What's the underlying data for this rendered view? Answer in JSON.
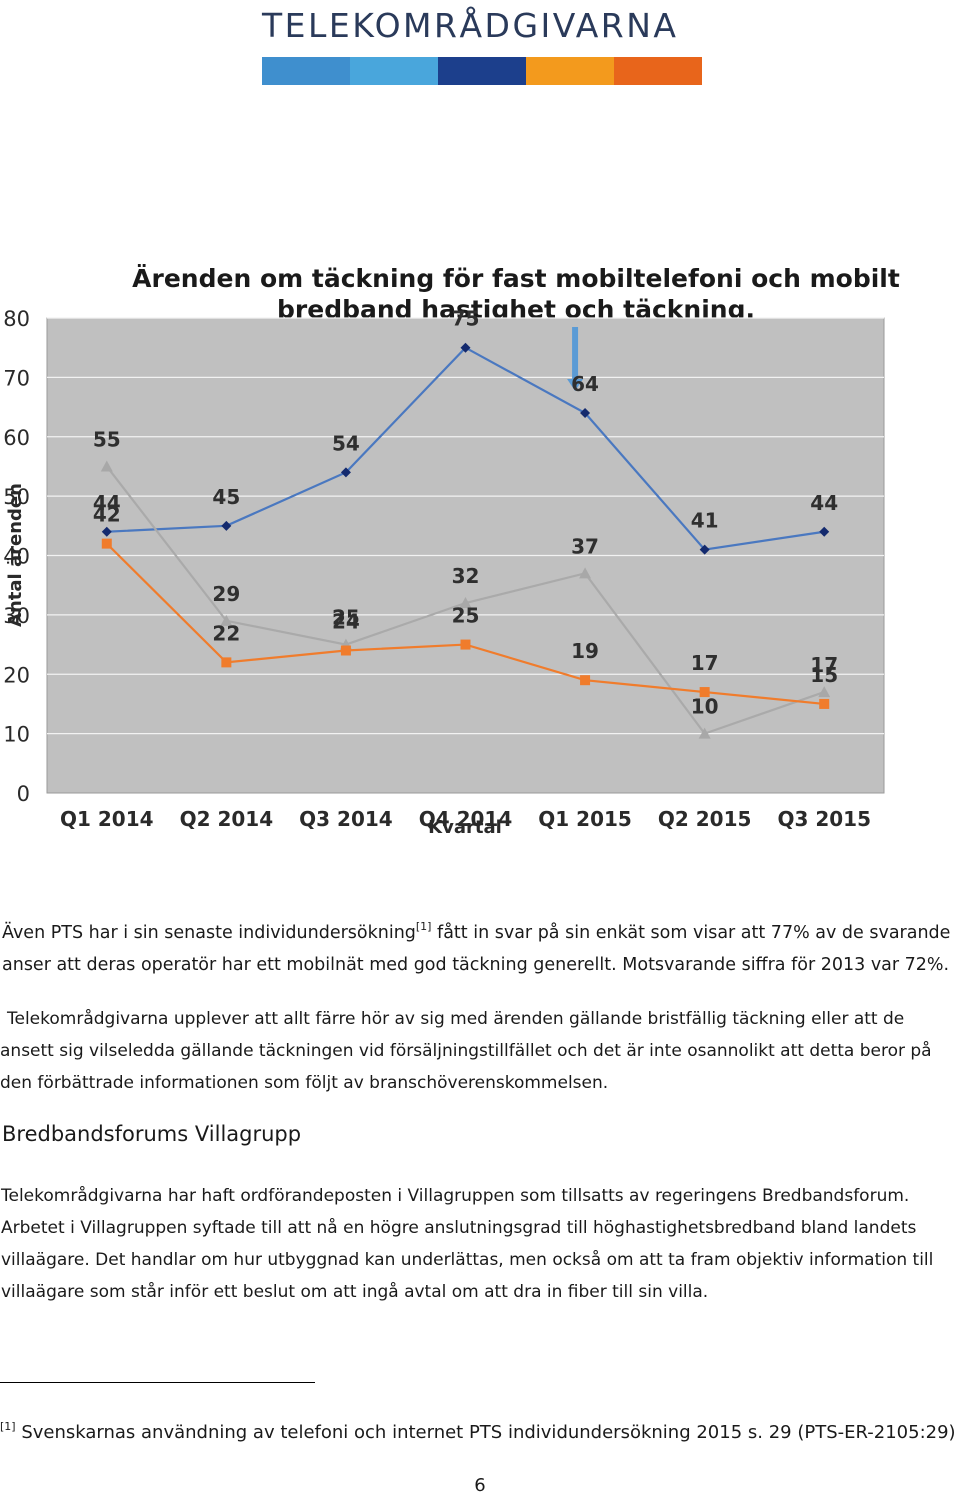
{
  "brand": {
    "name": "TELEKOMRÅDGIVARNA",
    "stripe_colors": [
      "#3f8fce",
      "#49a6dc",
      "#1c3f8c",
      "#f39a1d",
      "#e8651b"
    ]
  },
  "chart_data": {
    "type": "line",
    "title": "Ärenden om täckning för fast mobiltelefoni och mobilt bredband hastighet och täckning.",
    "xlabel": "Kvartal",
    "ylabel": "Antal ärenden",
    "categories": [
      "Q1 2014",
      "Q2 2014",
      "Q3 2014",
      "Q4 2014",
      "Q1 2015",
      "Q2 2015",
      "Q3 2015"
    ],
    "ylim": [
      0,
      80
    ],
    "yticks": [
      0,
      10,
      20,
      30,
      40,
      50,
      60,
      70,
      80
    ],
    "grid": true,
    "plot_background": "#c0c0c0",
    "series": [
      {
        "color": "#4a78c0",
        "marker": "diamond",
        "marker_color": "#142a6e",
        "values": [
          44,
          45,
          54,
          75,
          64,
          41,
          44
        ]
      },
      {
        "color": "#aaaaaa",
        "marker": "triangle",
        "marker_color": "#a8a8a8",
        "values": [
          55,
          29,
          25,
          32,
          37,
          10,
          17
        ]
      },
      {
        "color": "#f07c2c",
        "marker": "square",
        "marker_color": "#f07c2c",
        "values": [
          42,
          22,
          24,
          25,
          19,
          17,
          15
        ]
      }
    ],
    "annotation": "arrow-down"
  },
  "body": {
    "p1_before": "Även PTS har i sin senaste individundersökning",
    "p1_ref": "[1]",
    "p1_after": " fått in svar på sin enkät som visar att 77% av de svarande anser att deras operatör har ett mobilnät med god täckning generellt. Motsvarande siffra för 2013 var 72%.",
    "p2": "Telekområdgivarna upplever att allt färre hör av sig med ärenden gällande bristfällig täckning eller att de ansett sig vilseledda gällande täckningen vid försäljningstillfället och det är inte osannolikt att detta beror på den förbättrade informationen som följt av branschöverenskommelsen.",
    "heading": "Bredbandsforums Villagrupp",
    "p3": "Telekområdgivarna har haft ordförandeposten i Villagruppen som tillsatts av regeringens Bredbandsforum. Arbetet i Villagruppen syftade till att nå en högre anslutningsgrad till höghastighetsbredband bland landets villaägare. Det handlar om hur utbyggnad kan underlättas, men också om att ta fram objektiv information till villaägare som står inför ett beslut om att ingå avtal om att dra in fiber till sin villa."
  },
  "footnote": {
    "ref": "[1]",
    "text": " Svenskarnas användning av telefoni och internet PTS individundersökning 2015 s. 29 (PTS-ER-2105:29)"
  },
  "page_number": "6"
}
